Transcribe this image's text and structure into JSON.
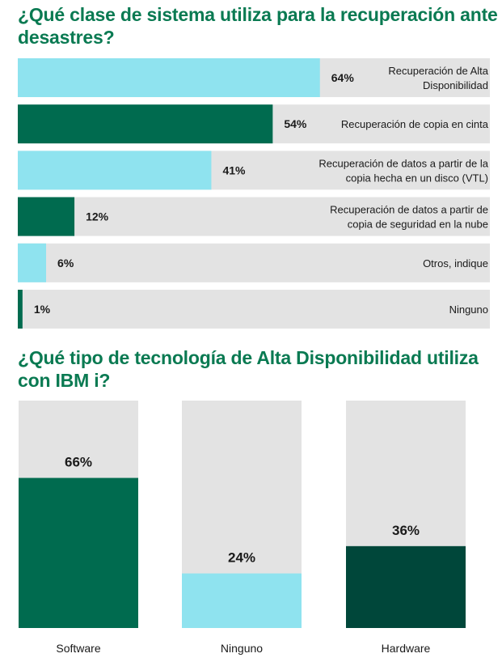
{
  "chart_data": [
    {
      "type": "bar",
      "orientation": "horizontal",
      "title": "¿Qué clase de sistema utiliza para la recuperación ante desastres?",
      "xlim": [
        0,
        100
      ],
      "categories": [
        [
          "Recuperación de Alta",
          "Disponibilidad"
        ],
        [
          "Recuperación de copia en cinta"
        ],
        [
          "Recuperación de datos a partir de la",
          "copia hecha en un disco (VTL)"
        ],
        [
          "Recuperación de datos a partir de",
          "copia de seguridad en la nube"
        ],
        [
          "Otros, indique"
        ],
        [
          "Ninguno"
        ]
      ],
      "values": [
        64,
        54,
        41,
        12,
        6,
        1
      ],
      "value_labels": [
        "64%",
        "54%",
        "41%",
        "12%",
        "6%",
        "1%"
      ],
      "colors": [
        "#8fe3ef",
        "#006b4f",
        "#8fe3ef",
        "#006b4f",
        "#8fe3ef",
        "#006b4f"
      ]
    },
    {
      "type": "bar",
      "orientation": "vertical",
      "title": "¿Qué tipo de tecnología de Alta Disponibilidad utiliza con IBM i?",
      "ylim": [
        0,
        100
      ],
      "categories": [
        "Software",
        "Ninguno",
        "Hardware"
      ],
      "values": [
        66,
        24,
        36
      ],
      "value_labels": [
        "66%",
        "24%",
        "36%"
      ],
      "colors": [
        "#006b4f",
        "#8fe3ef",
        "#00473a"
      ]
    }
  ],
  "track_color": "#e3e3e3"
}
